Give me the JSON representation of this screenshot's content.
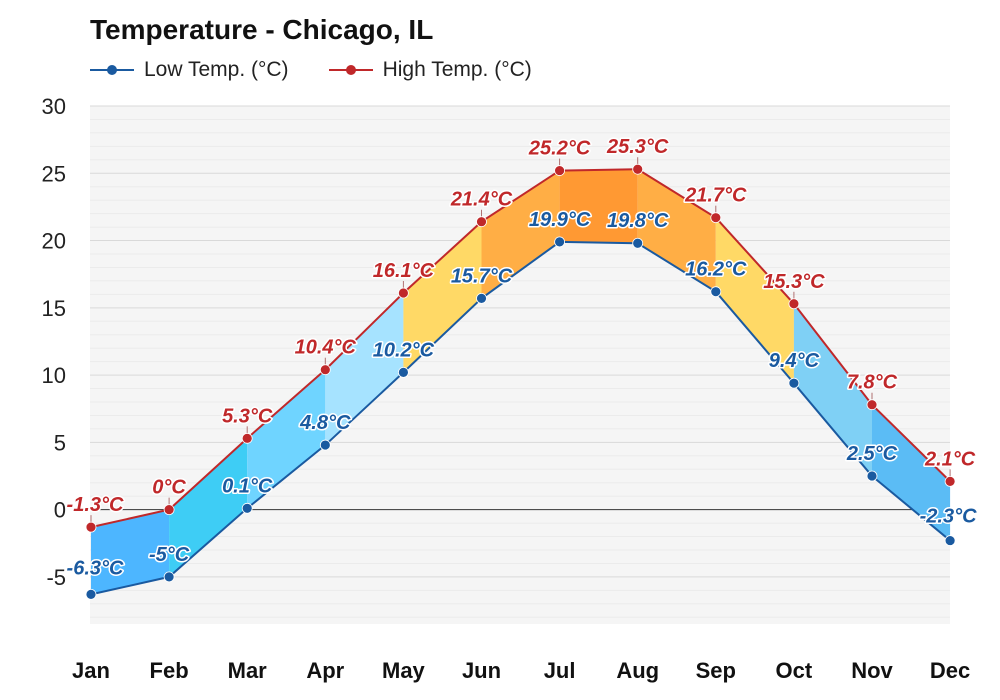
{
  "chart_data": {
    "type": "area",
    "title": "Temperature - Chicago, IL",
    "categories": [
      "Jan",
      "Feb",
      "Mar",
      "Apr",
      "May",
      "Jun",
      "Jul",
      "Aug",
      "Sep",
      "Oct",
      "Nov",
      "Dec"
    ],
    "series": [
      {
        "name": "Low Temp. (°C)",
        "color": "#1a5aa0",
        "values": [
          -6.3,
          -5,
          0.1,
          4.8,
          10.2,
          15.7,
          19.9,
          19.8,
          16.2,
          9.4,
          2.5,
          -2.3
        ],
        "labels": [
          "-6.3°C",
          "-5°C",
          "0.1°C",
          "4.8°C",
          "10.2°C",
          "15.7°C",
          "19.9°C",
          "19.8°C",
          "16.2°C",
          "9.4°C",
          "2.5°C",
          "-2.3°C"
        ]
      },
      {
        "name": "High Temp. (°C)",
        "color": "#c0282a",
        "values": [
          -1.3,
          0,
          5.3,
          10.4,
          16.1,
          21.4,
          25.2,
          25.3,
          21.7,
          15.3,
          7.8,
          2.1
        ],
        "labels": [
          "-1.3°C",
          "0°C",
          "5.3°C",
          "10.4°C",
          "16.1°C",
          "21.4°C",
          "25.2°C",
          "25.3°C",
          "21.7°C",
          "15.3°C",
          "7.8°C",
          "2.1°C"
        ]
      }
    ],
    "yticks": [
      "30",
      "25",
      "20",
      "15",
      "10",
      "5",
      "0",
      "-5"
    ],
    "ytick_values": [
      30,
      25,
      20,
      15,
      10,
      5,
      0,
      -5
    ],
    "ylim": [
      -8.5,
      30
    ],
    "grid": true,
    "legend_position": "top-left",
    "band_colors": [
      "#4db6ff",
      "#3ecdf5",
      "#6fd4ff",
      "#a6e3ff",
      "#ffd966",
      "#ffae45",
      "#ff9933",
      "#ffae45",
      "#ffd966",
      "#7fd0f5",
      "#5bbcf5",
      "#3aa8f0"
    ]
  }
}
